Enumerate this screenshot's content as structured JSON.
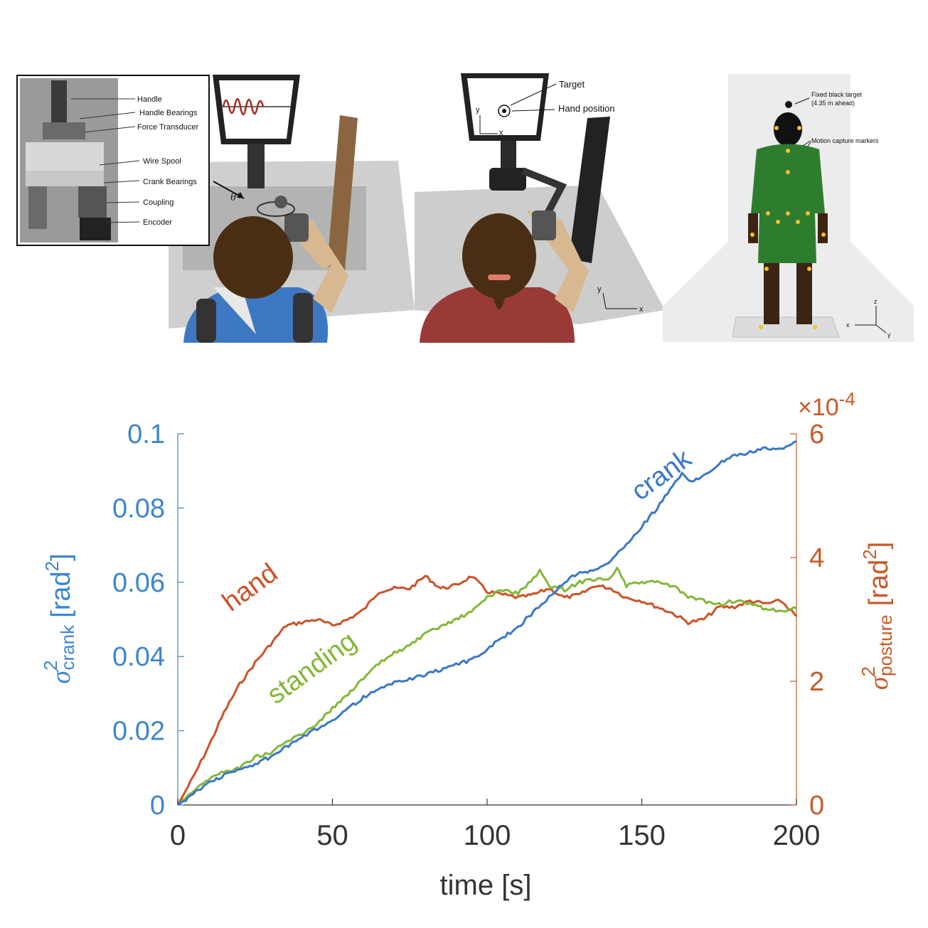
{
  "panels": {
    "crank_rig": {
      "callouts": [
        "Handle",
        "Handle Bearings",
        "Force Transducer",
        "Wire Spool",
        "Crank Bearings",
        "Coupling",
        "Encoder"
      ],
      "theta_dot": "θ̇"
    },
    "hand_task": {
      "target_label": "Target",
      "hand_position_label": "Hand position",
      "screen_axis_x": "x",
      "screen_axis_y": "y",
      "floor_axis_x": "x",
      "floor_axis_y": "y"
    },
    "standing_task": {
      "target_label": "Fixed black target",
      "target_distance": "(4.35 m ahead)",
      "markers_label": "Motion capture markers",
      "axis_x": "x",
      "axis_y": "y",
      "axis_z": "z"
    }
  },
  "colors": {
    "crank": "#3a78c6",
    "hand": "#cc5228",
    "standing": "#84b737",
    "left_axis": "#3d86cf",
    "right_axis": "#c85a26",
    "x_axis": "#333333"
  },
  "chart_data": {
    "type": "line",
    "xlabel": "time [s]",
    "xlim": [
      0,
      200
    ],
    "x_ticks": [
      0,
      50,
      100,
      150,
      200
    ],
    "left_axis": {
      "label_sigma": "σ",
      "label_sup": "2",
      "label_sub": "crank",
      "label_unit": "[rad",
      "label_unit_sup": "2",
      "label_unit_close": "]",
      "ylim": [
        0,
        0.1
      ],
      "ticks": [
        0,
        0.02,
        0.04,
        0.06,
        0.08,
        0.1
      ],
      "tick_labels": [
        "0",
        "0.02",
        "0.04",
        "0.06",
        "0.08",
        "0.1"
      ]
    },
    "right_axis": {
      "label_sigma": "σ",
      "label_sup": "2",
      "label_sub": "posture",
      "label_unit": "[rad",
      "label_unit_sup": "2",
      "label_unit_close": "]",
      "exponent_prefix": "×10",
      "exponent_power": "-4",
      "ylim": [
        0,
        6
      ],
      "ticks": [
        0,
        2,
        4,
        6
      ],
      "tick_labels": [
        "0",
        "2",
        "4",
        "6"
      ]
    },
    "series": [
      {
        "name": "crank",
        "axis": "left",
        "x": [
          0,
          5,
          10,
          15,
          20,
          25,
          30,
          40,
          50,
          60,
          70,
          80,
          90,
          95,
          100,
          110,
          115,
          120,
          125,
          130,
          135,
          140,
          145,
          150,
          155,
          160,
          163,
          166,
          170,
          175,
          180,
          185,
          190,
          195,
          200
        ],
        "values": [
          0,
          0.003,
          0.006,
          0.008,
          0.0095,
          0.011,
          0.013,
          0.018,
          0.023,
          0.029,
          0.033,
          0.035,
          0.038,
          0.039,
          0.042,
          0.048,
          0.052,
          0.056,
          0.06,
          0.063,
          0.063,
          0.066,
          0.07,
          0.075,
          0.08,
          0.086,
          0.089,
          0.087,
          0.089,
          0.092,
          0.094,
          0.095,
          0.096,
          0.096,
          0.098
        ]
      },
      {
        "name": "hand",
        "axis": "right",
        "x": [
          0,
          5,
          10,
          15,
          20,
          25,
          30,
          35,
          40,
          45,
          50,
          55,
          60,
          65,
          70,
          75,
          80,
          85,
          90,
          95,
          100,
          105,
          110,
          115,
          120,
          125,
          130,
          135,
          140,
          145,
          150,
          155,
          160,
          165,
          170,
          175,
          180,
          185,
          190,
          195,
          200
        ],
        "values": [
          0,
          0.45,
          0.95,
          1.5,
          1.95,
          2.3,
          2.6,
          2.9,
          2.95,
          3.0,
          2.9,
          3.0,
          3.15,
          3.45,
          3.5,
          3.5,
          3.7,
          3.5,
          3.55,
          3.7,
          3.45,
          3.4,
          3.35,
          3.4,
          3.5,
          3.35,
          3.4,
          3.55,
          3.5,
          3.35,
          3.3,
          3.2,
          3.1,
          2.95,
          3.0,
          3.2,
          3.2,
          3.3,
          3.25,
          3.3,
          3.05
        ]
      },
      {
        "name": "standing",
        "axis": "left",
        "x": [
          0,
          5,
          10,
          15,
          20,
          25,
          30,
          35,
          40,
          45,
          50,
          55,
          60,
          65,
          70,
          75,
          80,
          85,
          90,
          95,
          100,
          105,
          110,
          115,
          117,
          120,
          125,
          130,
          135,
          140,
          142,
          145,
          150,
          155,
          160,
          165,
          170,
          175,
          180,
          185,
          190,
          195,
          200
        ],
        "values": [
          0,
          0.004,
          0.007,
          0.009,
          0.01,
          0.013,
          0.014,
          0.017,
          0.019,
          0.022,
          0.026,
          0.03,
          0.034,
          0.038,
          0.041,
          0.043,
          0.046,
          0.048,
          0.05,
          0.052,
          0.056,
          0.058,
          0.057,
          0.061,
          0.063,
          0.059,
          0.058,
          0.06,
          0.061,
          0.061,
          0.064,
          0.059,
          0.06,
          0.06,
          0.059,
          0.056,
          0.055,
          0.054,
          0.055,
          0.054,
          0.053,
          0.052,
          0.053
        ]
      }
    ],
    "annotations": [
      {
        "text": "crank",
        "series": "crank",
        "x": 158,
        "y": 0.087,
        "axis": "left"
      },
      {
        "text": "hand",
        "series": "hand",
        "x": 25,
        "y": 3.4,
        "axis": "right"
      },
      {
        "text": "standing",
        "series": "standing",
        "x": 45,
        "y": 0.035,
        "axis": "left"
      }
    ]
  }
}
